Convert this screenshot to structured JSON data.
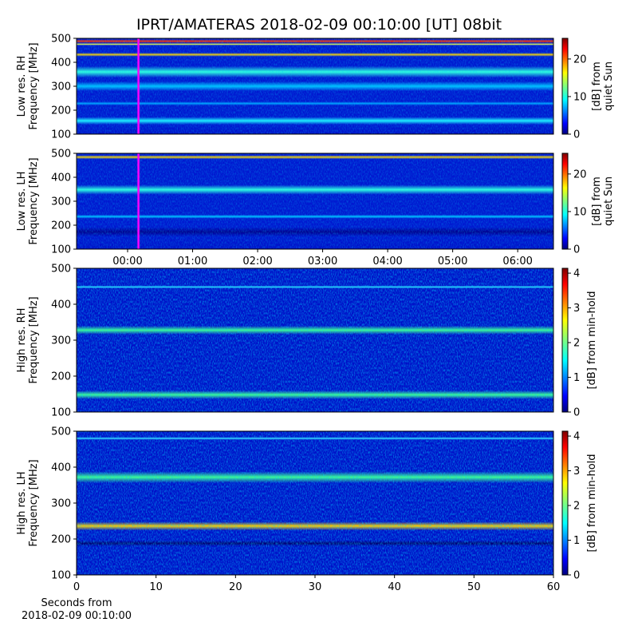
{
  "suptitle": "IPRT/AMATERAS 2018-02-09 00:10:00 [UT]   08bit",
  "chart_data": [
    {
      "type": "heatmap",
      "ylabel": [
        "Low res. RH",
        "Frequency [MHz]"
      ],
      "ylim": [
        100,
        500
      ],
      "yticks": [
        100,
        200,
        300,
        400,
        500
      ],
      "xlim": [
        -0.785,
        6.55
      ],
      "marker_x": 0.1667,
      "marker_color": "#ff00ff",
      "colorbar": {
        "label": [
          "[dB] from",
          "quiet Sun"
        ],
        "lim": [
          0,
          25.5
        ],
        "ticks": [
          0,
          10,
          20
        ]
      }
    },
    {
      "type": "heatmap",
      "ylabel": [
        "Low res. LH",
        "Frequency [MHz]"
      ],
      "ylim": [
        100,
        500
      ],
      "yticks": [
        100,
        200,
        300,
        400,
        500
      ],
      "xlim": [
        -0.785,
        6.55
      ],
      "marker_x": 0.1667,
      "marker_color": "#ff00ff",
      "xticks": [
        {
          "value": 0,
          "label": "00:00"
        },
        {
          "value": 1,
          "label": "01:00"
        },
        {
          "value": 2,
          "label": "02:00"
        },
        {
          "value": 3,
          "label": "03:00"
        },
        {
          "value": 4,
          "label": "04:00"
        },
        {
          "value": 5,
          "label": "05:00"
        },
        {
          "value": 6,
          "label": "06:00"
        }
      ],
      "colorbar": {
        "label": [
          "[dB] from",
          "quiet Sun"
        ],
        "lim": [
          0,
          25.5
        ],
        "ticks": [
          0,
          10,
          20
        ]
      }
    },
    {
      "type": "heatmap",
      "ylabel": [
        "High res. RH",
        "Frequency [MHz]"
      ],
      "ylim": [
        100,
        500
      ],
      "yticks": [
        100,
        200,
        300,
        400,
        500
      ],
      "xlim": [
        0,
        60
      ],
      "colorbar": {
        "label": [
          "[dB] from min-hold"
        ],
        "lim": [
          0,
          4.14
        ],
        "ticks": [
          0,
          1,
          2,
          3,
          4
        ]
      }
    },
    {
      "type": "heatmap",
      "ylabel": [
        "High res. LH",
        "Frequency [MHz]"
      ],
      "ylim": [
        100,
        500
      ],
      "yticks": [
        100,
        200,
        300,
        400,
        500
      ],
      "xlim": [
        0,
        60
      ],
      "xticks": [
        0,
        10,
        20,
        30,
        40,
        50,
        60
      ],
      "xlabel": [
        "Seconds from",
        "2018-02-09 00:10:00"
      ],
      "colorbar": {
        "label": [
          "[dB] from min-hold"
        ],
        "lim": [
          0,
          4.14
        ],
        "ticks": [
          0,
          1,
          2,
          3,
          4
        ]
      }
    }
  ]
}
